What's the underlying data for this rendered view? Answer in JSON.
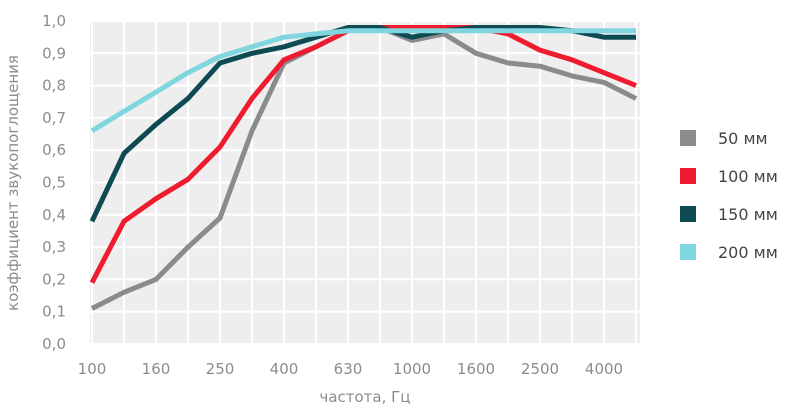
{
  "chart_data": {
    "type": "line",
    "xlabel": "частота, Гц",
    "ylabel": "коэффициент звукопоглощения",
    "ylim": [
      0,
      1
    ],
    "y_ticks": [
      "0,0",
      "0,1",
      "0,2",
      "0,3",
      "0,4",
      "0,5",
      "0,6",
      "0,7",
      "0,8",
      "0,9",
      "1,0"
    ],
    "x_ticks": [
      "100",
      "160",
      "250",
      "400",
      "630",
      "1000",
      "1600",
      "2500",
      "4000"
    ],
    "x": [
      "100",
      "125",
      "160",
      "200",
      "250",
      "315",
      "400",
      "500",
      "630",
      "800",
      "1000",
      "1250",
      "1600",
      "2000",
      "2500",
      "3150",
      "4000",
      "5000"
    ],
    "grid": true,
    "legend_position": "right",
    "series": [
      {
        "name": "50 мм",
        "color": "#8a8b8f",
        "values": [
          0.11,
          0.16,
          0.2,
          0.3,
          0.39,
          0.66,
          0.87,
          0.92,
          0.97,
          0.98,
          0.94,
          0.96,
          0.9,
          0.87,
          0.86,
          0.83,
          0.81,
          0.76
        ]
      },
      {
        "name": "100 мм",
        "color": "#ee1c2e",
        "values": [
          0.19,
          0.38,
          0.45,
          0.51,
          0.61,
          0.76,
          0.88,
          0.92,
          0.97,
          0.98,
          0.98,
          0.98,
          0.98,
          0.96,
          0.91,
          0.88,
          0.84,
          0.8
        ]
      },
      {
        "name": "150 мм",
        "color": "#0d4a52",
        "values": [
          0.38,
          0.59,
          0.68,
          0.76,
          0.87,
          0.9,
          0.92,
          0.95,
          0.98,
          0.98,
          0.95,
          0.97,
          0.98,
          0.98,
          0.98,
          0.97,
          0.95,
          0.95
        ]
      },
      {
        "name": "200 мм",
        "color": "#7fd6de",
        "values": [
          0.66,
          0.72,
          0.78,
          0.84,
          0.89,
          0.92,
          0.95,
          0.96,
          0.97,
          0.97,
          0.97,
          0.97,
          0.97,
          0.97,
          0.97,
          0.97,
          0.97,
          0.97
        ]
      }
    ]
  }
}
